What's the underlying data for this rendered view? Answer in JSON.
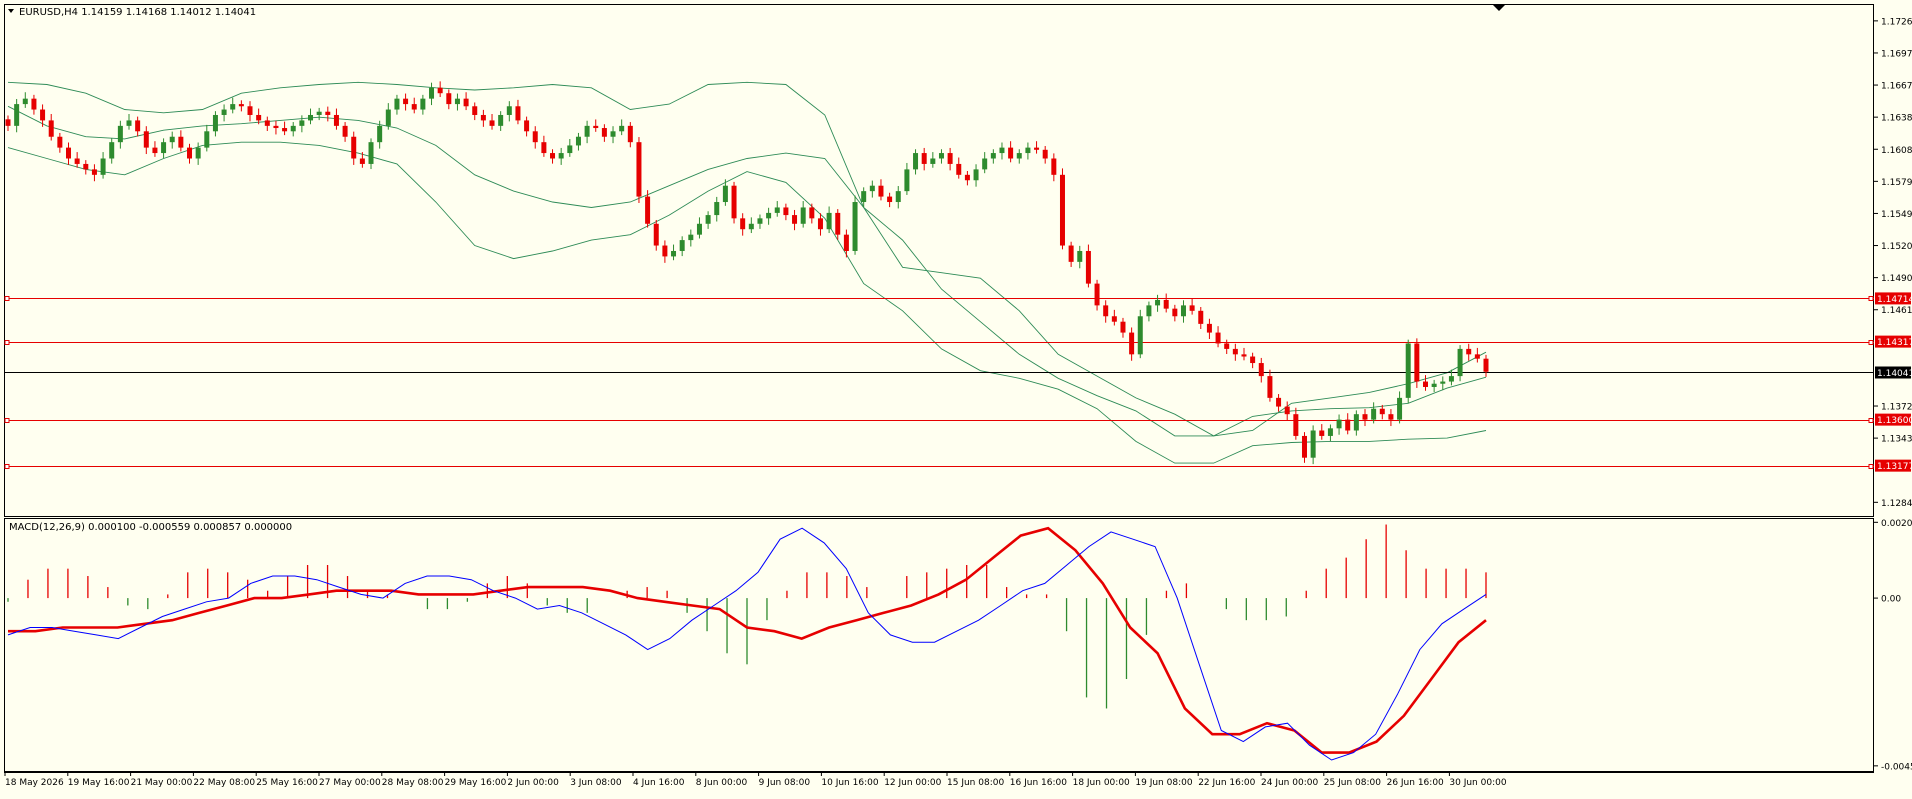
{
  "colors": {
    "background": "#fffff0",
    "bull_candle": "#2e8b2e",
    "bear_candle": "#e60000",
    "bands": "#2e8b57",
    "level_line": "#e60000",
    "current_price_line": "#000000",
    "macd_line": "#0000ff",
    "signal_line": "#e60000",
    "hist_positive": "#e60000",
    "hist_negative": "#2e8b2e"
  },
  "main_header": "EURUSD,H4  1.14159 1.14168 1.14012 1.14041",
  "macd_header": "MACD(12,26,9) 0.000100 -0.000559 0.000857 0.000000",
  "chart_data": [
    {
      "type": "candlestick",
      "title": "EURUSD,H4",
      "ohlc_readout": {
        "open": 1.14159,
        "high": 1.14168,
        "low": 1.14012,
        "close": 1.14041
      },
      "ylim": [
        1.12705,
        1.1742
      ],
      "y_ticks": [
        "1.17265",
        "1.16970",
        "1.16675",
        "1.16380",
        "1.16085",
        "1.15790",
        "1.15495",
        "1.15200",
        "1.14905",
        "1.14610",
        "1.14317",
        "1.14041",
        "1.13725",
        "1.13430",
        "1.13177",
        "1.12840"
      ],
      "horizontal_levels": [
        {
          "value": 1.14714,
          "label": "1.14714"
        },
        {
          "value": 1.14317,
          "label": "1.14317"
        },
        {
          "value": 1.136,
          "label": "1.13600"
        },
        {
          "value": 1.13177,
          "label": "1.13177"
        }
      ],
      "current_price": {
        "value": 1.14041,
        "label": "1.14041"
      },
      "x_labels": [
        "18 May 2026",
        "19 May 16:00",
        "21 May 00:00",
        "22 May 08:00",
        "25 May 16:00",
        "27 May 00:00",
        "28 May 08:00",
        "29 May 16:00",
        "2 Jun 00:00",
        "3 Jun 08:00",
        "4 Jun 16:00",
        "8 Jun 00:00",
        "9 Jun 08:00",
        "10 Jun 16:00",
        "12 Jun 00:00",
        "15 Jun 08:00",
        "16 Jun 16:00",
        "18 Jun 00:00",
        "19 Jun 08:00",
        "22 Jun 16:00",
        "24 Jun 00:00",
        "25 Jun 08:00",
        "26 Jun 16:00",
        "30 Jun 00:00"
      ],
      "close_path": [
        1.163,
        1.165,
        1.1655,
        1.1645,
        1.1635,
        1.162,
        1.161,
        1.16,
        1.1595,
        1.159,
        1.1585,
        1.16,
        1.1615,
        1.163,
        1.1635,
        1.1625,
        1.161,
        1.1605,
        1.1615,
        1.162,
        1.161,
        1.16,
        1.161,
        1.1625,
        1.164,
        1.1645,
        1.165,
        1.1648,
        1.164,
        1.1635,
        1.163,
        1.1628,
        1.1625,
        1.163,
        1.1635,
        1.164,
        1.1643,
        1.164,
        1.163,
        1.162,
        1.16,
        1.1595,
        1.1615,
        1.163,
        1.1645,
        1.1655,
        1.165,
        1.1645,
        1.1655,
        1.1665,
        1.166,
        1.165,
        1.1655,
        1.1648,
        1.164,
        1.1635,
        1.163,
        1.164,
        1.1648,
        1.1635,
        1.1625,
        1.1615,
        1.1605,
        1.16,
        1.1605,
        1.1612,
        1.162,
        1.163,
        1.1628,
        1.162,
        1.1625,
        1.163,
        1.1615,
        1.1565,
        1.154,
        1.152,
        1.151,
        1.1515,
        1.1525,
        1.153,
        1.154,
        1.1548,
        1.156,
        1.1575,
        1.1545,
        1.1535,
        1.154,
        1.1545,
        1.155,
        1.1555,
        1.1548,
        1.154,
        1.1555,
        1.1545,
        1.1535,
        1.155,
        1.153,
        1.1515,
        1.156,
        1.157,
        1.1575,
        1.1565,
        1.156,
        1.157,
        1.159,
        1.1605,
        1.1595,
        1.16,
        1.1605,
        1.1595,
        1.1585,
        1.158,
        1.159,
        1.16,
        1.1605,
        1.161,
        1.16,
        1.1605,
        1.161,
        1.1608,
        1.16,
        1.1585,
        1.152,
        1.1505,
        1.1515,
        1.1485,
        1.1465,
        1.1455,
        1.145,
        1.144,
        1.142,
        1.1455,
        1.1465,
        1.147,
        1.1462,
        1.1455,
        1.1465,
        1.146,
        1.1448,
        1.144,
        1.143,
        1.1425,
        1.142,
        1.1418,
        1.1412,
        1.14,
        1.138,
        1.1372,
        1.1365,
        1.1345,
        1.1325,
        1.135,
        1.1345,
        1.1352,
        1.136,
        1.135,
        1.1365,
        1.136,
        1.137,
        1.1365,
        1.136,
        1.138,
        1.143,
        1.1395,
        1.139,
        1.1393,
        1.1395,
        1.14,
        1.1425,
        1.142,
        1.1416,
        1.1404
      ],
      "bollinger_bands": {
        "upper": [
          1.167,
          1.1668,
          1.166,
          1.1645,
          1.1642,
          1.1645,
          1.166,
          1.1665,
          1.1668,
          1.167,
          1.1668,
          1.1665,
          1.1663,
          1.1665,
          1.1668,
          1.1665,
          1.1645,
          1.165,
          1.1668,
          1.167,
          1.1668,
          1.164,
          1.1555,
          1.15,
          1.1495,
          1.149,
          1.146,
          1.142,
          1.14,
          1.138,
          1.1365,
          1.1345,
          1.135,
          1.1375,
          1.138,
          1.1385,
          1.1393,
          1.1403,
          1.1422
        ],
        "middle": [
          1.1648,
          1.163,
          1.162,
          1.1618,
          1.1626,
          1.163,
          1.1632,
          1.1635,
          1.1638,
          1.1635,
          1.1628,
          1.1612,
          1.1585,
          1.157,
          1.156,
          1.1555,
          1.156,
          1.1575,
          1.159,
          1.16,
          1.1605,
          1.16,
          1.1555,
          1.1525,
          1.148,
          1.145,
          1.142,
          1.1398,
          1.1382,
          1.1368,
          1.1345,
          1.1345,
          1.1363,
          1.1368,
          1.137,
          1.1371,
          1.1375,
          1.1389,
          1.1399
        ],
        "lower": [
          1.161,
          1.16,
          1.159,
          1.1585,
          1.16,
          1.1612,
          1.1615,
          1.1615,
          1.1612,
          1.1605,
          1.1595,
          1.156,
          1.152,
          1.1508,
          1.1515,
          1.1525,
          1.153,
          1.1548,
          1.157,
          1.1588,
          1.1578,
          1.1545,
          1.1485,
          1.146,
          1.1425,
          1.1405,
          1.1398,
          1.1388,
          1.137,
          1.134,
          1.132,
          1.132,
          1.1336,
          1.1339,
          1.134,
          1.134,
          1.1342,
          1.1343,
          1.135
        ]
      }
    },
    {
      "type": "macd",
      "title": "MACD(12,26,9)",
      "readout": [
        0.0001,
        -0.000559,
        0.000857,
        0.0
      ],
      "ylim": [
        -0.0047,
        0.00215
      ],
      "y_ticks": [
        "0.002059",
        "0.00",
        "-0.004561"
      ],
      "macd_line": [
        -0.001,
        -0.0008,
        -0.0008,
        -0.0009,
        -0.001,
        -0.0011,
        -0.0008,
        -0.0005,
        -0.0003,
        -0.0001,
        0.0,
        0.0004,
        0.0006,
        0.0006,
        0.0005,
        0.0003,
        0.0001,
        0.0,
        0.0004,
        0.0006,
        0.0006,
        0.0005,
        0.0002,
        0.0,
        -0.0003,
        -0.0002,
        -0.0004,
        -0.0007,
        -0.001,
        -0.0014,
        -0.0011,
        -0.0006,
        -0.0002,
        0.0002,
        0.0007,
        0.0016,
        0.0019,
        0.0015,
        0.0008,
        -0.0004,
        -0.001,
        -0.0012,
        -0.0012,
        -0.0009,
        -0.0006,
        -0.0002,
        0.0002,
        0.0004,
        0.0009,
        0.0014,
        0.0018,
        0.0016,
        0.0014,
        0.0,
        -0.0018,
        -0.0036,
        -0.0039,
        -0.0035,
        -0.0034,
        -0.004,
        -0.0044,
        -0.0042,
        -0.0037,
        -0.0026,
        -0.0014,
        -0.0007,
        -0.0003,
        0.0001
      ],
      "signal_line": [
        -0.0009,
        -0.0009,
        -0.0008,
        -0.0008,
        -0.0008,
        -0.0007,
        -0.0006,
        -0.0004,
        -0.0002,
        0.0,
        0.0,
        0.0001,
        0.0002,
        0.0002,
        0.0002,
        0.0001,
        0.0001,
        0.0001,
        0.0002,
        0.0003,
        0.0003,
        0.0003,
        0.0002,
        0.0,
        -0.0001,
        -0.0002,
        -0.0003,
        -0.0008,
        -0.0009,
        -0.0011,
        -0.0008,
        -0.0006,
        -0.0004,
        -0.0002,
        0.0001,
        0.0005,
        0.0011,
        0.0017,
        0.0019,
        0.0013,
        0.0004,
        -0.0008,
        -0.0015,
        -0.003,
        -0.0037,
        -0.0037,
        -0.0034,
        -0.0036,
        -0.0042,
        -0.0042,
        -0.0039,
        -0.0032,
        -0.0022,
        -0.0012,
        -0.0006
      ],
      "histogram": [
        -0.0001,
        0.0005,
        0.0008,
        0.0008,
        0.0006,
        0.0003,
        -0.0002,
        -0.0003,
        0.0001,
        0.0007,
        0.0008,
        0.0007,
        0.0005,
        0.0002,
        0.0006,
        0.0009,
        0.0009,
        0.0006,
        0.0002,
        0.0001,
        0.0,
        -0.0003,
        -0.0003,
        -0.0001,
        0.0004,
        0.0006,
        0.0004,
        -0.0002,
        -0.0004,
        -0.0004,
        0.0,
        0.0002,
        0.0003,
        0.0002,
        -0.0004,
        -0.0009,
        -0.0015,
        -0.0018,
        -0.0006,
        0.0002,
        0.0007,
        0.0007,
        0.0006,
        0.0003,
        0.0,
        0.0006,
        0.0007,
        0.0008,
        0.0009,
        0.0009,
        0.0003,
        0.0001,
        0.0001,
        -0.0009,
        -0.0027,
        -0.003,
        -0.0022,
        -0.001,
        0.0002,
        0.0004,
        0.0,
        -0.0003,
        -0.0006,
        -0.0006,
        -0.0005,
        0.0002,
        0.0008,
        0.0011,
        0.0016,
        0.002,
        0.0013,
        0.0008,
        0.0008,
        0.0008,
        0.0007
      ]
    }
  ]
}
